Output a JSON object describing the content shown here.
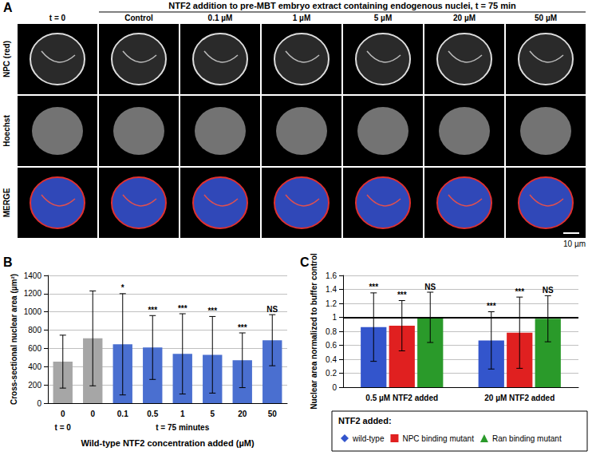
{
  "panel_a": {
    "panel_label": "A",
    "header": "NTF2 addition to pre-MBT embryo extract containing endogenous nuclei, t = 75 min",
    "columns": [
      "t = 0",
      "Control",
      "0.1 µM",
      "1 µM",
      "5 µM",
      "20 µM",
      "50 µM"
    ],
    "rows": [
      "NPC (red)",
      "Hoechst",
      "MERGE"
    ],
    "scale_bar": "10 µm"
  },
  "chart_data": [
    {
      "type": "bar",
      "panel_label": "B",
      "categories": [
        "0",
        "0",
        "0.1",
        "0.5",
        "1",
        "5",
        "20",
        "50"
      ],
      "values": [
        455,
        710,
        645,
        610,
        540,
        530,
        470,
        690
      ],
      "errors": [
        290,
        520,
        555,
        350,
        440,
        420,
        300,
        280
      ],
      "significance": [
        null,
        null,
        "*",
        "***",
        "***",
        "***",
        "***",
        "NS"
      ],
      "colors": [
        "#a6a6a6",
        "#a6a6a6",
        "#4a6fd0",
        "#4a6fd0",
        "#4a6fd0",
        "#4a6fd0",
        "#4a6fd0",
        "#4a6fd0"
      ],
      "x_group_labels": [
        {
          "label": "t = 0",
          "from": 0,
          "to": 0
        },
        {
          "label": "t = 75 minutes",
          "from": 1,
          "to": 7
        }
      ],
      "x_label": "Wild-type NTF2 concentration added (µM)",
      "y_label": "Cross-sectional nuclear area (µm²)",
      "ylim": [
        0,
        1400
      ],
      "yticks": [
        0,
        200,
        400,
        600,
        800,
        1000,
        1200,
        1400
      ],
      "grid": true
    },
    {
      "type": "bar",
      "panel_label": "C",
      "categories": [
        "0.5 µM NTF2 added",
        "20 µM NTF2 added"
      ],
      "series": [
        {
          "name": "wild-type",
          "color": "#3355cc",
          "marker": "diamond",
          "values": [
            0.86,
            0.67
          ],
          "errors": [
            0.49,
            0.41
          ],
          "significance": [
            "***",
            "***"
          ]
        },
        {
          "name": "NPC binding mutant",
          "color": "#e02020",
          "marker": "square",
          "values": [
            0.88,
            0.78
          ],
          "errors": [
            0.36,
            0.51
          ],
          "significance": [
            "***",
            "***"
          ]
        },
        {
          "name": "Ran binding mutant",
          "color": "#2a9a2a",
          "marker": "triangle",
          "values": [
            1.0,
            0.98
          ],
          "errors": [
            0.36,
            0.33
          ],
          "significance": [
            "NS",
            "NS"
          ]
        }
      ],
      "reference_line": 1,
      "y_label": "Nuclear area normalized to buffer control",
      "ylim": [
        0,
        1.6
      ],
      "yticks": [
        0,
        0.2,
        0.4,
        0.6,
        0.8,
        1,
        1.2,
        1.4,
        1.6
      ],
      "grid": true,
      "legend": "bottom",
      "legend_title": "NTF2 added:"
    }
  ]
}
